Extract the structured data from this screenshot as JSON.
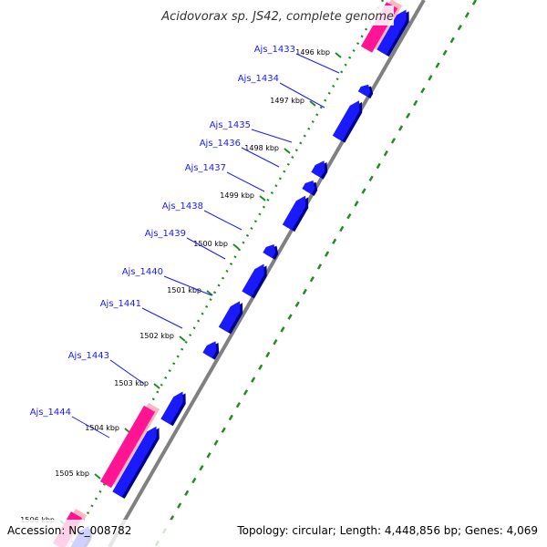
{
  "header": {
    "title": "Acidovorax sp. JS42, complete genome"
  },
  "footer": {
    "accession": "Accession: NC_008782",
    "summary": "Topology: circular; Length: 4,448,856 bp; Genes: 4,069"
  },
  "colors": {
    "gene_forward": "#1a1aff",
    "gene_feature": "#ff1493",
    "backbone": "#808080",
    "dotted_track": "#228b22",
    "label": "#1a1aff"
  },
  "genes": [
    {
      "label": "Ajs_1433"
    },
    {
      "label": "Ajs_1434"
    },
    {
      "label": "Ajs_1435"
    },
    {
      "label": "Ajs_1436"
    },
    {
      "label": "Ajs_1437"
    },
    {
      "label": "Ajs_1438"
    },
    {
      "label": "Ajs_1439"
    },
    {
      "label": "Ajs_1440"
    },
    {
      "label": "Ajs_1441"
    },
    {
      "label": "Ajs_1443"
    },
    {
      "label": "Ajs_1444"
    }
  ],
  "ticks": [
    {
      "label": "1496 kbp"
    },
    {
      "label": "1497 kbp"
    },
    {
      "label": "1498 kbp"
    },
    {
      "label": "1499 kbp"
    },
    {
      "label": "1500 kbp"
    },
    {
      "label": "1501 kbp"
    },
    {
      "label": "1502 kbp"
    },
    {
      "label": "1503 kbp"
    },
    {
      "label": "1504 kbp"
    },
    {
      "label": "1505 kbp"
    },
    {
      "label": "1506 kbp"
    }
  ]
}
